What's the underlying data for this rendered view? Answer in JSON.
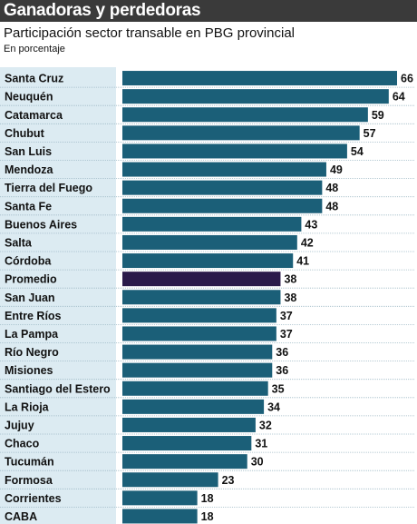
{
  "header": {
    "title": "Ganadoras y perdedoras"
  },
  "chart_data": {
    "type": "bar",
    "orientation": "horizontal",
    "title": "Participación sector transable en PBG provincial",
    "subtitle": "En porcentaje",
    "categories": [
      "Santa Cruz",
      "Neuquén",
      "Catamarca",
      "Chubut",
      "San Luis",
      "Mendoza",
      "Tierra del Fuego",
      "Santa Fe",
      "Buenos Aires",
      "Salta",
      "Córdoba",
      "Promedio",
      "San Juan",
      "Entre Ríos",
      "La Pampa",
      "Río Negro",
      "Misiones",
      "Santiago del Estero",
      "La Rioja",
      "Jujuy",
      "Chaco",
      "Tucumán",
      "Formosa",
      "Corrientes",
      "CABA"
    ],
    "values": [
      66,
      64,
      59,
      57,
      54,
      49,
      48,
      48,
      43,
      42,
      41,
      38,
      38,
      37,
      37,
      36,
      36,
      35,
      34,
      32,
      31,
      30,
      23,
      18,
      18
    ],
    "highlight": "Promedio",
    "colors": {
      "bar": "#1b5f78",
      "highlight_bar": "#2a1a4a",
      "label_band": "#dcebf2",
      "header": "#3a3a3a"
    },
    "grid": false,
    "legend": "none"
  }
}
